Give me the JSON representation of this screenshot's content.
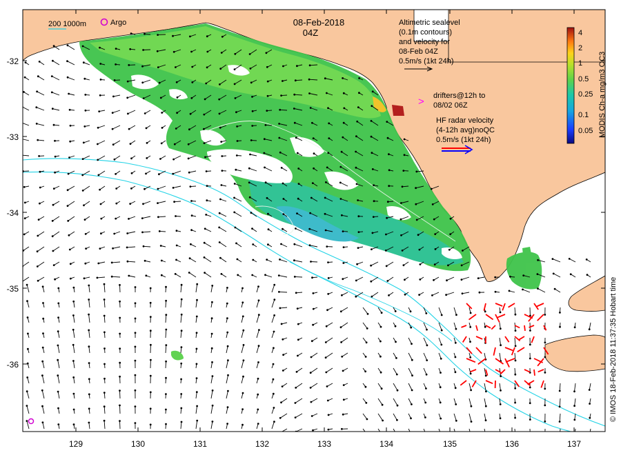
{
  "header": {
    "date": "08-Feb-2018",
    "time": "04Z"
  },
  "scale_legend": {
    "depth_label": "200  1000m",
    "argo_label": "Argo"
  },
  "altimetry_legend": {
    "lines": [
      "Altimetric sealevel",
      "(0.1m contours)",
      "and velocity for",
      "08-Feb 04Z",
      "0.5m/s (1kt 24h)"
    ]
  },
  "drifter_legend": {
    "symbol": ">",
    "lines": [
      "drifters@12h to",
      "08/02 06Z"
    ]
  },
  "hf_radar_legend": {
    "lines": [
      "HF radar velocity",
      "(4-12h avg)noQC",
      "0.5m/s (1kt 24h)"
    ]
  },
  "colorbar": {
    "title": "MODIS Ch-a mg/m3 OC3",
    "ticks": [
      "4",
      "2",
      "1",
      "0.5",
      "0.25",
      "0.1",
      "0.05"
    ]
  },
  "credit": "© IMOS 18-Feb-2018 11:37:35 Hobart time",
  "axes": {
    "x_ticks": [
      "129",
      "130",
      "131",
      "132",
      "133",
      "134",
      "135",
      "136",
      "137"
    ],
    "y_ticks": [
      "-32",
      "-33",
      "-34",
      "-35",
      "-36"
    ]
  },
  "colors": {
    "land": "#f9c79e",
    "shelf_contour": "#22d3e6",
    "hf_radar": "#ff0000",
    "argo": "#d000d0",
    "drifter": "#ff00ff"
  }
}
